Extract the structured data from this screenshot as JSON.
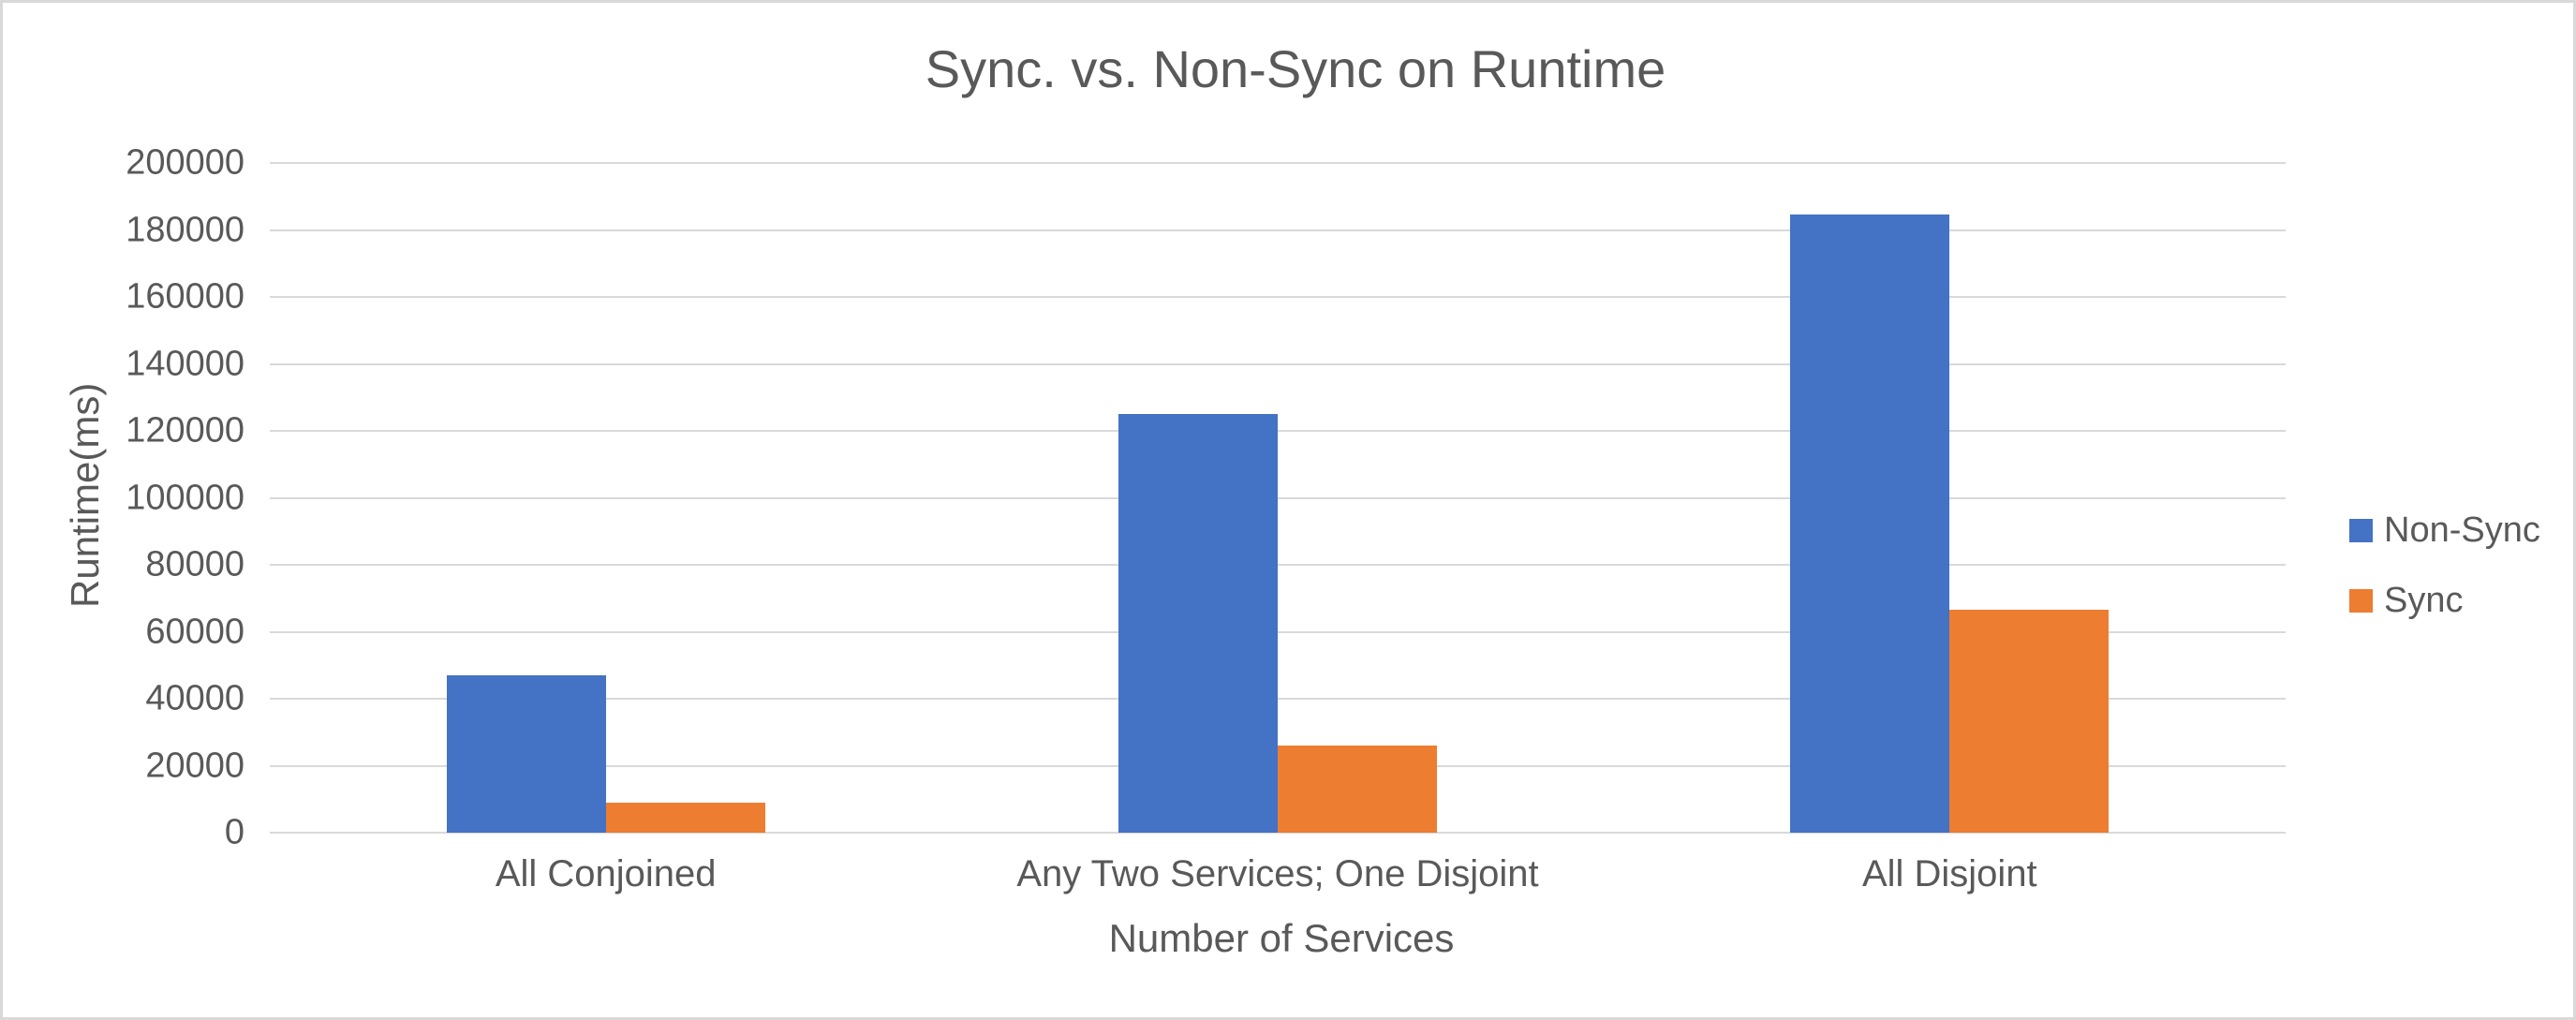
{
  "chart_data": {
    "type": "bar",
    "title": "Sync. vs. Non-Sync on Runtime",
    "xlabel": "Number of Services",
    "ylabel": "Runtime(ms)",
    "categories": [
      "All Conjoined",
      "Any Two Services; One Disjoint",
      "All Disjoint"
    ],
    "series": [
      {
        "name": "Non-Sync",
        "color": "#4472C4",
        "values": [
          47000,
          125000,
          184500
        ]
      },
      {
        "name": "Sync",
        "color": "#ED7D31",
        "values": [
          9000,
          26000,
          66500
        ]
      }
    ],
    "y_ticks": [
      0,
      20000,
      40000,
      60000,
      80000,
      100000,
      120000,
      140000,
      160000,
      180000,
      200000
    ],
    "ylim": [
      0,
      200000
    ],
    "grid": true,
    "legend_position": "right",
    "colors": {
      "text": "#595959",
      "gridline": "#D9D9D9",
      "background": "#FFFFFF",
      "border": "#D9D9D9"
    }
  }
}
